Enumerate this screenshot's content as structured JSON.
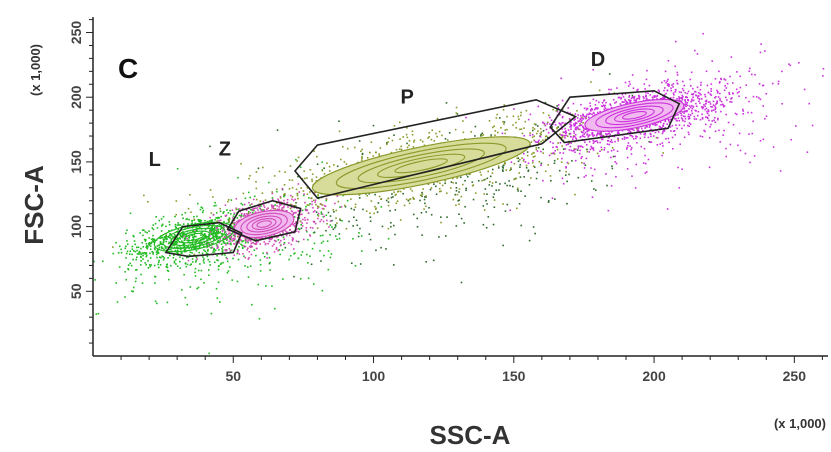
{
  "chart_data": {
    "type": "scatter",
    "title": "",
    "panel_label": "C",
    "xlabel": "SSC-A",
    "ylabel": "FSC-A",
    "x_multiplier": "(x 1,000)",
    "y_multiplier": "(x 1,000)",
    "xlim": [
      0,
      262
    ],
    "ylim": [
      0,
      262
    ],
    "x_ticks": [
      50,
      100,
      150,
      200,
      250
    ],
    "y_ticks": [
      50,
      100,
      150,
      200,
      250
    ],
    "x_tick_labels": [
      "50",
      "100",
      "150",
      "200",
      "250"
    ],
    "y_tick_labels": [
      "50",
      "100",
      "150",
      "200",
      "250"
    ],
    "grid": false,
    "legend": "none",
    "colors": {
      "green": "#22bb22",
      "dark_green": "#2f6b2f",
      "olive": "#8a9a2a",
      "pink": "#d04db8",
      "magenta": "#cc33dd",
      "gate": "#222222"
    },
    "populations": [
      {
        "label": "L",
        "label_pos": [
          22,
          147
        ],
        "center": [
          36,
          92
        ],
        "spread": [
          8,
          6
        ],
        "color": "green",
        "gate": [
          [
            26,
            80
          ],
          [
            32,
            100
          ],
          [
            45,
            103
          ],
          [
            53,
            95
          ],
          [
            50,
            80
          ],
          [
            34,
            77
          ]
        ]
      },
      {
        "label": "Z",
        "label_pos": [
          47,
          155
        ],
        "center": [
          61,
          102
        ],
        "spread": [
          6,
          6
        ],
        "color": "pink",
        "gate": [
          [
            48,
            98
          ],
          [
            52,
            112
          ],
          [
            64,
            120
          ],
          [
            74,
            114
          ],
          [
            72,
            96
          ],
          [
            58,
            89
          ]
        ]
      },
      {
        "label": "P",
        "label_pos": [
          112,
          195
        ],
        "center": [
          117,
          147
        ],
        "spread": [
          22,
          9
        ],
        "color": "olive",
        "gate": [
          [
            72,
            143
          ],
          [
            80,
            163
          ],
          [
            158,
            198
          ],
          [
            172,
            185
          ],
          [
            160,
            164
          ],
          [
            80,
            122
          ]
        ]
      },
      {
        "label": "D",
        "label_pos": [
          180,
          224
        ],
        "center": [
          193,
          186
        ],
        "spread": [
          10,
          6
        ],
        "color": "magenta",
        "gate": [
          [
            163,
            177
          ],
          [
            170,
            200
          ],
          [
            200,
            205
          ],
          [
            209,
            195
          ],
          [
            205,
            176
          ],
          [
            168,
            165
          ]
        ]
      }
    ]
  }
}
